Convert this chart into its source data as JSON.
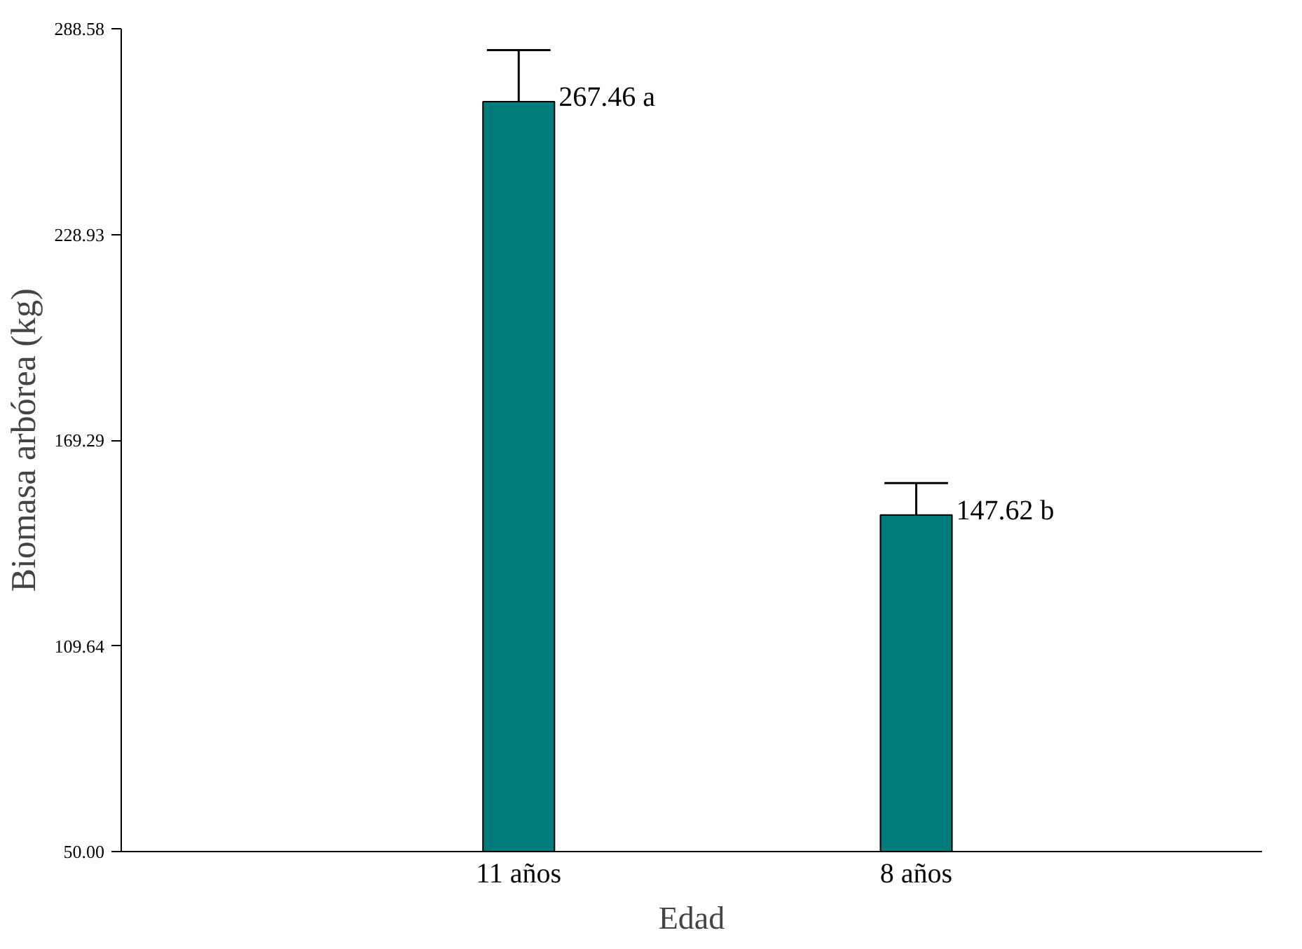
{
  "chart_data": {
    "type": "bar",
    "xlabel": "Edad",
    "ylabel": "Biomasa arbórea (kg)",
    "categories": [
      "11 años",
      "8 años"
    ],
    "values": [
      267.46,
      147.62
    ],
    "errors": [
      14.9,
      9.2
    ],
    "annotations": [
      {
        "text": "267.46 a",
        "x": "11 años",
        "y": 267.46
      },
      {
        "text": "147.62 b",
        "x": "8 años",
        "y": 147.62
      }
    ],
    "color": "#007b7b",
    "ylim": [
      50,
      288.58
    ],
    "yticks": [
      {
        "value": 50,
        "label": "50.00"
      },
      {
        "value": 109.64,
        "label": "109.64"
      },
      {
        "value": 169.29,
        "label": "169.29"
      },
      {
        "value": 228.93,
        "label": "228.93"
      },
      {
        "value": 288.58,
        "label": "288.58"
      }
    ],
    "grid": false
  }
}
